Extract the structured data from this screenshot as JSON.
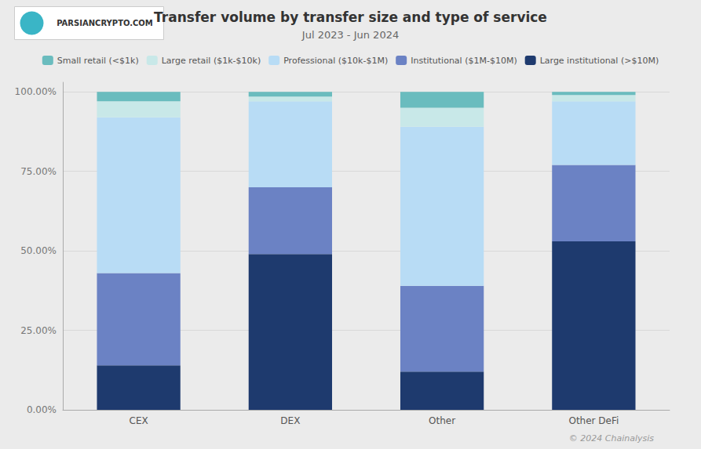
{
  "chart_data": {
    "type": "bar",
    "title": "Transfer volume by transfer size and type of service",
    "subtitle": "Jul 2023 - Jun 2024",
    "annotations": [
      "© 2024 Chainalysis",
      "PARSIANCRYPTO.COM"
    ],
    "categories": [
      "CEX",
      "DEX",
      "Other",
      "Other DeFi"
    ],
    "series": [
      {
        "name": "Large institutional (>$10M)",
        "color": "#1e3a6e",
        "values": [
          14.0,
          49.0,
          12.0,
          53.0
        ]
      },
      {
        "name": "Institutional ($1M-$10M)",
        "color": "#6b82c4",
        "values": [
          29.0,
          21.0,
          27.0,
          24.0
        ]
      },
      {
        "name": "Professional ($10k-$1M)",
        "color": "#b8dcf5",
        "values": [
          49.0,
          27.0,
          50.0,
          20.0
        ]
      },
      {
        "name": "Large retail ($1k-$10k)",
        "color": "#c8e8e8",
        "values": [
          5.0,
          1.5,
          6.0,
          2.0
        ]
      },
      {
        "name": "Small retail (<$1k)",
        "color": "#6abcbe",
        "values": [
          3.0,
          1.5,
          5.0,
          1.0
        ]
      }
    ],
    "stacked": true,
    "ylim": [
      0,
      103
    ],
    "yticks": [
      {
        "value": 0,
        "label": "0.00%"
      },
      {
        "value": 25,
        "label": "25.00%"
      },
      {
        "value": 50,
        "label": "50.00%"
      },
      {
        "value": 75,
        "label": "75.00%"
      },
      {
        "value": 100,
        "label": "100.00%"
      }
    ],
    "grid": true,
    "legend": "top"
  }
}
